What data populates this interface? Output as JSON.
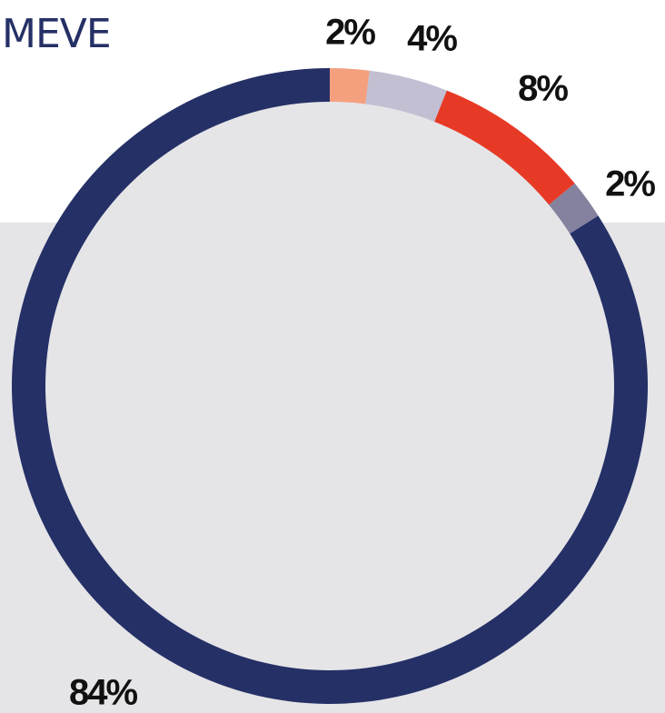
{
  "chart_data": {
    "type": "pie",
    "title": "MEVE",
    "values": [
      2,
      4,
      8,
      2,
      84
    ],
    "value_labels": [
      "2%",
      "4%",
      "8%",
      "2%",
      "84%"
    ],
    "colors": [
      "#f4a07f",
      "#c2bfd3",
      "#e73a26",
      "#85829f",
      "#253066"
    ]
  }
}
